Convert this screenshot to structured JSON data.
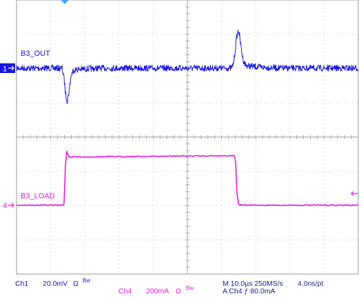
{
  "channels": [
    {
      "id": "ch1",
      "number": "1",
      "label": "B3_OUT",
      "color": "#1414e6"
    },
    {
      "id": "ch4",
      "number": "4",
      "label": "B3_LOAD",
      "color": "#e619e6"
    }
  ],
  "readout": {
    "ch1": {
      "name": "Ch1",
      "scale": "20.0mV",
      "coupling": "Ω",
      "bw": "Bw"
    },
    "ch4": {
      "name": "Ch4",
      "scale": "200mA",
      "coupling": "Ω",
      "bw": "Bw"
    },
    "timebase": "M 10.0µs 250MS/s",
    "resolution": "4.0ns/pt",
    "trigger": "A  Ch4  ƒ  80.0mA"
  },
  "colors": {
    "grid": "#9a9a9a",
    "ch1": "#1414e6",
    "ch4": "#e619e6",
    "trigger_marker": "#3fa7ff"
  }
}
